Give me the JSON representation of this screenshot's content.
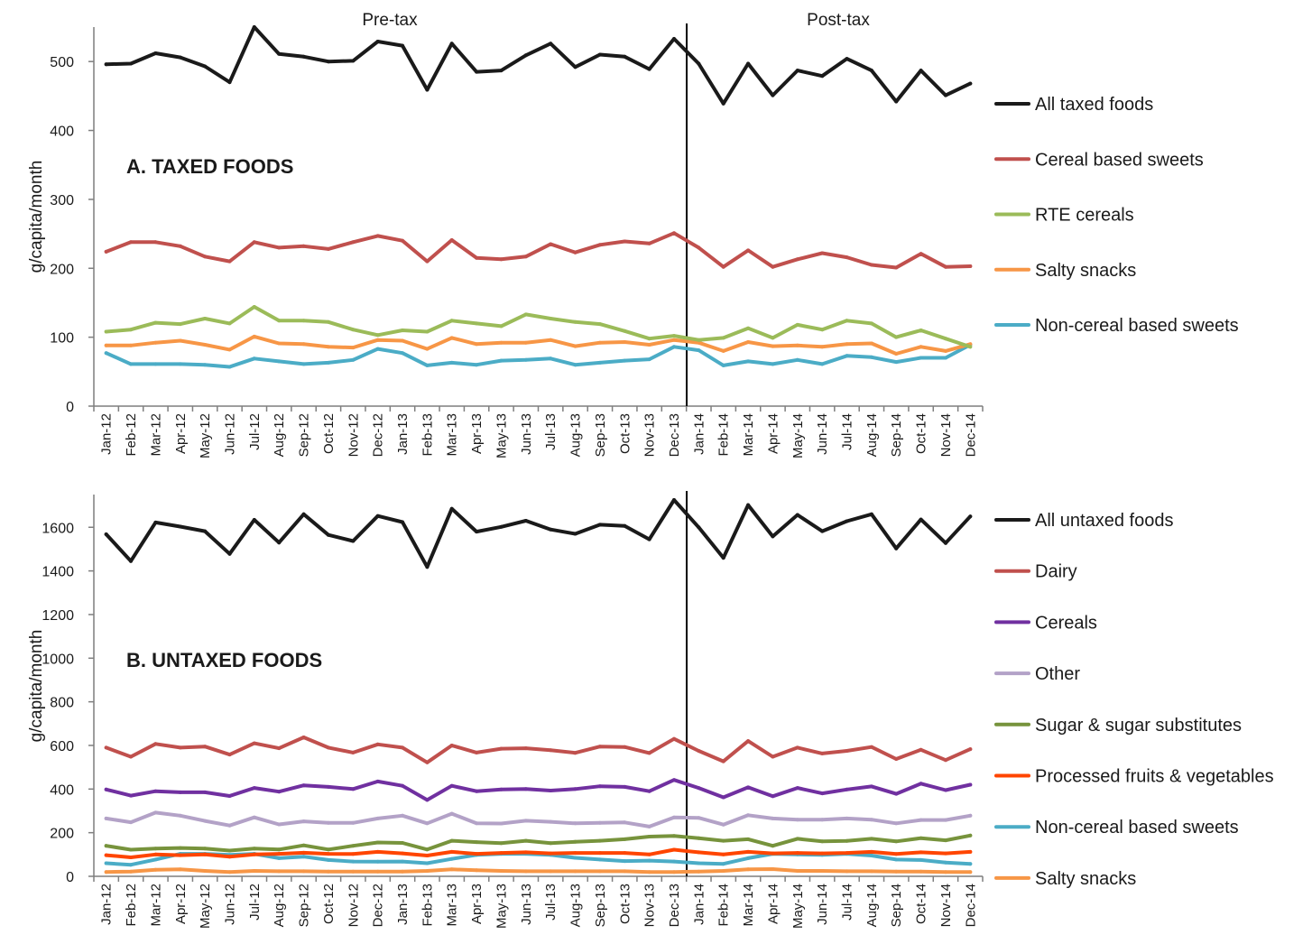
{
  "chart_data": [
    {
      "type": "line",
      "title": "A. TAXED FOODS",
      "ylabel": "g/capita/month",
      "ylim": [
        0,
        550
      ],
      "yticks": [
        0,
        100,
        200,
        300,
        400,
        500
      ],
      "period_labels": [
        "Pre-tax",
        "Post-tax"
      ],
      "tax_start": "Jan-14",
      "legend_position": "right",
      "categories": [
        "Jan-12",
        "Feb-12",
        "Mar-12",
        "Apr-12",
        "May-12",
        "Jun-12",
        "Jul-12",
        "Aug-12",
        "Sep-12",
        "Oct-12",
        "Nov-12",
        "Dec-12",
        "Jan-13",
        "Feb-13",
        "Mar-13",
        "Apr-13",
        "May-13",
        "Jun-13",
        "Jul-13",
        "Aug-13",
        "Sep-13",
        "Oct-13",
        "Nov-13",
        "Dec-13",
        "Jan-14",
        "Feb-14",
        "Mar-14",
        "Apr-14",
        "May-14",
        "Jun-14",
        "Jul-14",
        "Aug-14",
        "Sep-14",
        "Oct-14",
        "Nov-14",
        "Dec-14"
      ],
      "series": [
        {
          "name": "All taxed foods",
          "color": "#1a1a1a",
          "values": [
            496,
            497,
            512,
            506,
            493,
            470,
            550,
            511,
            507,
            500,
            501,
            529,
            523,
            459,
            526,
            485,
            487,
            509,
            526,
            492,
            510,
            507,
            489,
            533,
            497,
            439,
            497,
            451,
            487,
            479,
            504,
            487,
            442,
            487,
            451,
            468
          ]
        },
        {
          "name": "Cereal based sweets",
          "color": "#c0504d",
          "values": [
            224,
            238,
            238,
            232,
            217,
            210,
            238,
            230,
            232,
            228,
            238,
            247,
            240,
            210,
            241,
            215,
            213,
            217,
            235,
            223,
            234,
            239,
            236,
            251,
            230,
            202,
            226,
            202,
            213,
            222,
            216,
            205,
            201,
            221,
            202,
            203
          ]
        },
        {
          "name": "RTE cereals",
          "color": "#9bbb59",
          "values": [
            108,
            111,
            121,
            119,
            127,
            120,
            144,
            124,
            124,
            122,
            111,
            103,
            110,
            108,
            124,
            120,
            116,
            133,
            127,
            122,
            119,
            109,
            98,
            102,
            96,
            99,
            113,
            99,
            118,
            111,
            124,
            120,
            100,
            110,
            98,
            86
          ]
        },
        {
          "name": "Salty snacks",
          "color": "#f79646",
          "values": [
            88,
            88,
            92,
            95,
            89,
            82,
            101,
            91,
            90,
            86,
            85,
            96,
            95,
            83,
            99,
            90,
            92,
            92,
            96,
            87,
            92,
            93,
            89,
            96,
            92,
            80,
            93,
            87,
            88,
            86,
            90,
            91,
            76,
            86,
            80,
            90
          ]
        },
        {
          "name": "Non-cereal based sweets",
          "color": "#4bacc6",
          "values": [
            77,
            61,
            61,
            61,
            60,
            57,
            69,
            65,
            61,
            63,
            67,
            83,
            77,
            59,
            63,
            60,
            66,
            67,
            69,
            60,
            63,
            66,
            68,
            86,
            81,
            59,
            65,
            61,
            67,
            61,
            73,
            71,
            64,
            70,
            70,
            89
          ]
        }
      ]
    },
    {
      "type": "line",
      "title": "B. UNTAXED FOODS",
      "ylabel": "g/capita/month",
      "ylim": [
        0,
        1750
      ],
      "yticks": [
        0,
        200,
        400,
        600,
        800,
        1000,
        1200,
        1400,
        1600
      ],
      "tax_start": "Jan-14",
      "legend_position": "right",
      "categories": [
        "Jan-12",
        "Feb-12",
        "Mar-12",
        "Apr-12",
        "May-12",
        "Jun-12",
        "Jul-12",
        "Aug-12",
        "Sep-12",
        "Oct-12",
        "Nov-12",
        "Dec-12",
        "Jan-13",
        "Feb-13",
        "Mar-13",
        "Apr-13",
        "May-13",
        "Jun-13",
        "Jul-13",
        "Aug-13",
        "Sep-13",
        "Oct-13",
        "Nov-13",
        "Dec-13",
        "Jan-14",
        "Feb-14",
        "Mar-14",
        "Apr-14",
        "May-14",
        "Jun-14",
        "Jul-14",
        "Aug-14",
        "Sep-14",
        "Oct-14",
        "Nov-14",
        "Dec-14"
      ],
      "series": [
        {
          "name": "All untaxed foods",
          "color": "#1a1a1a",
          "values": [
            1568,
            1445,
            1622,
            1603,
            1582,
            1478,
            1634,
            1530,
            1660,
            1565,
            1537,
            1652,
            1624,
            1418,
            1685,
            1580,
            1602,
            1630,
            1590,
            1570,
            1612,
            1606,
            1545,
            1725,
            1600,
            1460,
            1702,
            1558,
            1657,
            1582,
            1628,
            1660,
            1503,
            1636,
            1528,
            1650
          ]
        },
        {
          "name": "Dairy",
          "color": "#c0504d",
          "values": [
            590,
            548,
            607,
            590,
            595,
            558,
            610,
            587,
            637,
            590,
            567,
            605,
            590,
            522,
            600,
            567,
            585,
            587,
            578,
            566,
            595,
            593,
            565,
            630,
            575,
            527,
            620,
            548,
            590,
            563,
            575,
            593,
            538,
            580,
            533,
            583
          ]
        },
        {
          "name": "Cereals",
          "color": "#7030a0",
          "values": [
            398,
            370,
            390,
            385,
            385,
            368,
            405,
            388,
            417,
            410,
            400,
            435,
            415,
            350,
            415,
            390,
            398,
            400,
            393,
            400,
            413,
            410,
            390,
            442,
            405,
            362,
            408,
            367,
            405,
            380,
            398,
            412,
            378,
            425,
            395,
            420
          ]
        },
        {
          "name": "Other",
          "color": "#b3a2c7",
          "values": [
            265,
            248,
            292,
            278,
            254,
            233,
            270,
            238,
            252,
            245,
            245,
            265,
            278,
            243,
            287,
            243,
            242,
            255,
            250,
            243,
            245,
            247,
            228,
            270,
            268,
            237,
            280,
            265,
            260,
            260,
            265,
            260,
            243,
            258,
            258,
            278
          ]
        },
        {
          "name": "Sugar & sugar substitutes",
          "color": "#77933c",
          "values": [
            140,
            122,
            127,
            130,
            127,
            118,
            127,
            123,
            142,
            123,
            140,
            155,
            153,
            123,
            163,
            157,
            152,
            163,
            152,
            158,
            163,
            170,
            182,
            185,
            175,
            163,
            170,
            140,
            172,
            160,
            162,
            172,
            160,
            175,
            165,
            187
          ]
        },
        {
          "name": "Processed fruits & vegetables",
          "color": "#ff4500",
          "values": [
            97,
            87,
            100,
            97,
            100,
            90,
            100,
            103,
            108,
            103,
            102,
            112,
            105,
            95,
            112,
            103,
            107,
            110,
            105,
            107,
            107,
            107,
            100,
            122,
            110,
            100,
            112,
            105,
            107,
            105,
            107,
            112,
            102,
            110,
            105,
            112
          ]
        },
        {
          "name": "Non-cereal based sweets",
          "color": "#4bacc6",
          "values": [
            60,
            53,
            77,
            103,
            103,
            98,
            103,
            83,
            90,
            75,
            68,
            67,
            68,
            60,
            80,
            98,
            103,
            103,
            98,
            85,
            77,
            70,
            72,
            68,
            60,
            57,
            83,
            103,
            100,
            98,
            103,
            95,
            77,
            75,
            63,
            57
          ]
        },
        {
          "name": "Salty snacks",
          "color": "#f79646",
          "values": [
            20,
            22,
            30,
            32,
            25,
            20,
            25,
            23,
            23,
            22,
            22,
            22,
            22,
            25,
            32,
            28,
            25,
            23,
            23,
            23,
            23,
            23,
            20,
            20,
            22,
            25,
            32,
            33,
            25,
            25,
            23,
            23,
            22,
            22,
            20,
            20
          ]
        }
      ]
    }
  ]
}
